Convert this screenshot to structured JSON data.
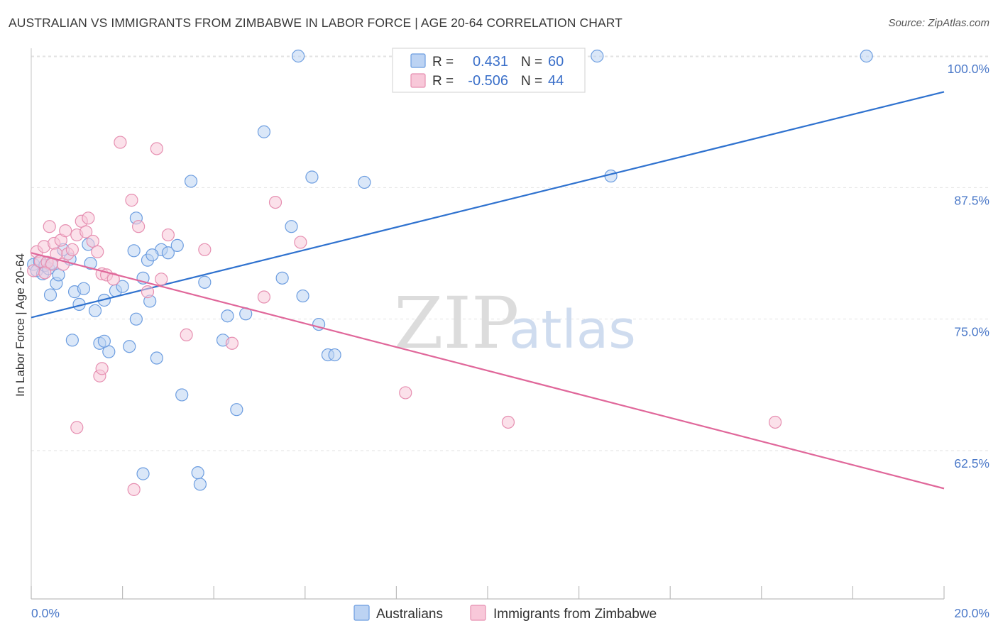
{
  "title": "AUSTRALIAN VS IMMIGRANTS FROM ZIMBABWE IN LABOR FORCE | AGE 20-64 CORRELATION CHART",
  "source": "Source: ZipAtlas.com",
  "watermark": {
    "zip": "ZIP",
    "atlas": "atlas"
  },
  "legend_top": [
    {
      "r_label": "R =",
      "r_value": "0.431",
      "n_label": "N =",
      "n_value": "60"
    },
    {
      "r_label": "R =",
      "r_value": "-0.506",
      "n_label": "N =",
      "n_value": "44"
    }
  ],
  "chart_data": {
    "type": "scatter",
    "title": "AUSTRALIAN VS IMMIGRANTS FROM ZIMBABWE IN LABOR FORCE | AGE 20-64 CORRELATION CHART",
    "xlabel": "",
    "ylabel": "In Labor Force | Age 20-64",
    "xlim": [
      0,
      20
    ],
    "ylim": [
      51.5,
      102
    ],
    "x_tick_labels": [
      "0.0%",
      "20.0%"
    ],
    "y_ticks": [
      62.5,
      75.0,
      87.5,
      100.0
    ],
    "y_tick_labels": [
      "62.5%",
      "75.0%",
      "87.5%",
      "100.0%"
    ],
    "legend_position": "top-center",
    "series": [
      {
        "name": "Australians",
        "color": "#6c9de0",
        "fill": "#bcd3f3",
        "r": 0.431,
        "n": 60,
        "trend": {
          "x": [
            0,
            20
          ],
          "y": [
            75.15,
            96.6
          ]
        },
        "points": [
          [
            0.05,
            80.2
          ],
          [
            0.12,
            79.6
          ],
          [
            0.18,
            80.5
          ],
          [
            0.25,
            79.3
          ],
          [
            0.3,
            80.1
          ],
          [
            0.38,
            79.8
          ],
          [
            0.45,
            80.3
          ],
          [
            0.55,
            78.4
          ],
          [
            0.6,
            79.2
          ],
          [
            0.7,
            81.6
          ],
          [
            0.85,
            80.7
          ],
          [
            0.95,
            77.6
          ],
          [
            1.05,
            76.4
          ],
          [
            1.15,
            77.9
          ],
          [
            1.25,
            82.1
          ],
          [
            1.3,
            80.3
          ],
          [
            1.4,
            75.8
          ],
          [
            1.5,
            72.7
          ],
          [
            1.6,
            76.8
          ],
          [
            1.7,
            71.9
          ],
          [
            1.85,
            77.7
          ],
          [
            2.0,
            78.1
          ],
          [
            2.15,
            72.4
          ],
          [
            2.25,
            81.5
          ],
          [
            2.3,
            84.6
          ],
          [
            2.45,
            78.9
          ],
          [
            2.55,
            80.6
          ],
          [
            2.6,
            76.7
          ],
          [
            2.75,
            71.3
          ],
          [
            2.85,
            81.6
          ],
          [
            3.0,
            81.3
          ],
          [
            3.3,
            67.8
          ],
          [
            3.5,
            88.1
          ],
          [
            3.8,
            78.5
          ],
          [
            4.2,
            73.0
          ],
          [
            4.3,
            75.3
          ],
          [
            4.5,
            66.4
          ],
          [
            4.7,
            75.5
          ],
          [
            5.1,
            92.8
          ],
          [
            5.5,
            78.9
          ],
          [
            5.7,
            83.8
          ],
          [
            5.95,
            77.2
          ],
          [
            6.15,
            88.5
          ],
          [
            6.3,
            74.5
          ],
          [
            6.5,
            71.6
          ],
          [
            6.65,
            71.6
          ],
          [
            7.3,
            88.0
          ],
          [
            2.3,
            75.0
          ],
          [
            2.65,
            81.1
          ],
          [
            3.2,
            82.0
          ],
          [
            3.7,
            59.3
          ],
          [
            3.65,
            60.4
          ],
          [
            2.45,
            60.3
          ],
          [
            0.9,
            73.0
          ],
          [
            1.6,
            72.9
          ],
          [
            0.42,
            77.3
          ],
          [
            5.85,
            100.0
          ],
          [
            12.4,
            100.0
          ],
          [
            18.3,
            100.0
          ],
          [
            12.7,
            88.6
          ]
        ]
      },
      {
        "name": "Immigrants from Zimbabwe",
        "color": "#e68fb1",
        "fill": "#f8c8d9",
        "r": -0.506,
        "n": 44,
        "trend": {
          "x": [
            0,
            20
          ],
          "y": [
            81.3,
            58.9
          ]
        },
        "points": [
          [
            0.05,
            79.6
          ],
          [
            0.12,
            81.4
          ],
          [
            0.2,
            80.5
          ],
          [
            0.28,
            81.9
          ],
          [
            0.35,
            80.4
          ],
          [
            0.4,
            83.8
          ],
          [
            0.5,
            82.2
          ],
          [
            0.55,
            81.2
          ],
          [
            0.65,
            82.5
          ],
          [
            0.7,
            80.2
          ],
          [
            0.8,
            81.2
          ],
          [
            0.9,
            81.6
          ],
          [
            1.0,
            83.0
          ],
          [
            1.1,
            84.3
          ],
          [
            1.2,
            83.3
          ],
          [
            1.35,
            82.4
          ],
          [
            1.45,
            81.4
          ],
          [
            1.55,
            79.3
          ],
          [
            1.65,
            79.2
          ],
          [
            1.8,
            78.8
          ],
          [
            1.95,
            91.8
          ],
          [
            2.2,
            86.3
          ],
          [
            2.35,
            83.8
          ],
          [
            2.55,
            77.6
          ],
          [
            2.75,
            91.2
          ],
          [
            2.85,
            78.8
          ],
          [
            3.0,
            83.0
          ],
          [
            3.4,
            73.5
          ],
          [
            3.8,
            81.6
          ],
          [
            4.4,
            72.7
          ],
          [
            5.1,
            77.1
          ],
          [
            5.35,
            86.1
          ],
          [
            5.9,
            82.3
          ],
          [
            1.0,
            64.7
          ],
          [
            1.5,
            69.6
          ],
          [
            1.55,
            70.3
          ],
          [
            2.25,
            58.8
          ],
          [
            8.2,
            68.0
          ],
          [
            10.45,
            65.2
          ],
          [
            16.3,
            65.2
          ],
          [
            0.45,
            80.2
          ],
          [
            0.75,
            83.4
          ],
          [
            1.25,
            84.6
          ],
          [
            0.3,
            79.4
          ]
        ]
      }
    ]
  },
  "bottom_legend": [
    "Australians",
    "Immigrants from Zimbabwe"
  ]
}
